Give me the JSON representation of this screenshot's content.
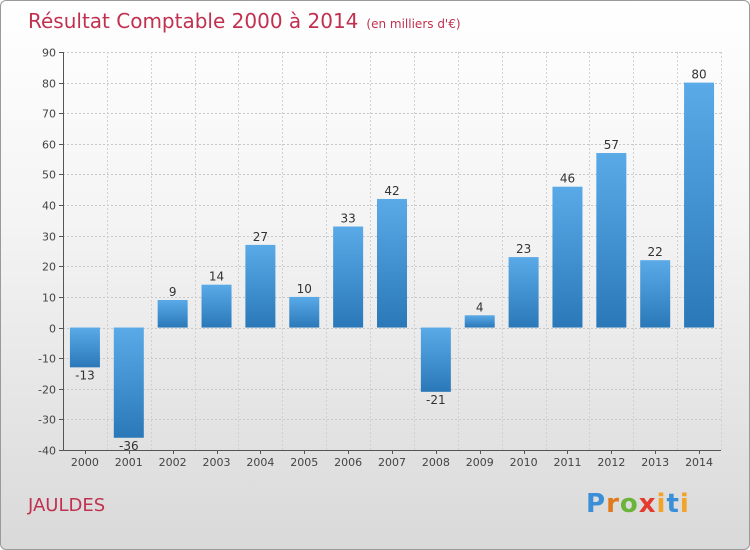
{
  "header": {
    "title": "Résultat Comptable 2000 à 2014",
    "unit": "(en milliers d'€)"
  },
  "footer": {
    "commune": "JAULDES",
    "brand": "Proxiti"
  },
  "colors": {
    "title": "#c0314f",
    "bar_top": "#5aaae8",
    "bar_bottom": "#2a78b8"
  },
  "chart_data": {
    "type": "bar",
    "title": "Résultat Comptable 2000 à 2014",
    "subtitle": "(en milliers d'€)",
    "xlabel": "",
    "ylabel": "",
    "ylim": [
      -40,
      90
    ],
    "yticks": [
      -40,
      -30,
      -20,
      -10,
      0,
      10,
      20,
      30,
      40,
      50,
      60,
      70,
      80,
      90
    ],
    "grid": true,
    "categories": [
      "2000",
      "2001",
      "2002",
      "2003",
      "2004",
      "2005",
      "2006",
      "2007",
      "2008",
      "2009",
      "2010",
      "2011",
      "2012",
      "2013",
      "2014"
    ],
    "values": [
      -13,
      -36,
      9,
      14,
      27,
      10,
      33,
      42,
      -21,
      4,
      23,
      46,
      57,
      22,
      80
    ]
  }
}
